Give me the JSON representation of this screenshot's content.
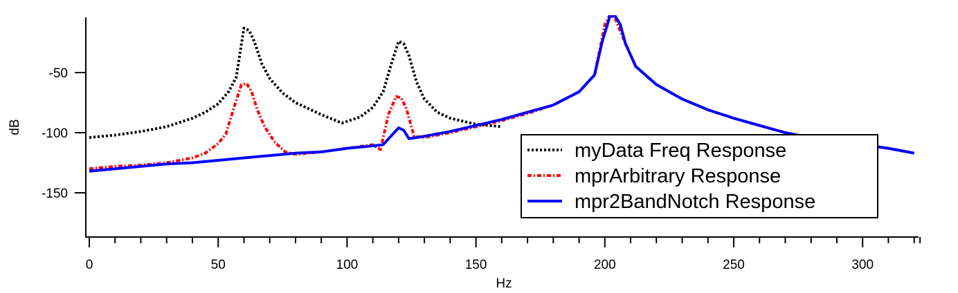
{
  "chart_data": {
    "type": "line",
    "title": "",
    "xlabel": "Hz",
    "ylabel": "dB",
    "xlim": [
      0,
      322
    ],
    "ylim": [
      -186,
      -4
    ],
    "x_ticks_major": [
      0,
      50,
      100,
      150,
      200,
      250,
      300
    ],
    "x_tick_labels": [
      "0",
      "50",
      "100",
      "150",
      "200",
      "250",
      "300"
    ],
    "x_minor_step": 10,
    "y_ticks_major": [
      -50,
      -100,
      -150
    ],
    "y_tick_labels": [
      "-50",
      "-100",
      "-150"
    ],
    "grid": false,
    "legend_position": "bottom-right",
    "series": [
      {
        "name": "myData Freq Response",
        "color": "#000000",
        "style": "dotted",
        "x": [
          0,
          10,
          20,
          30,
          40,
          45,
          50,
          54,
          57,
          60,
          62,
          64,
          67,
          70,
          75,
          80,
          90,
          98,
          105,
          110,
          114,
          117,
          120,
          122,
          124,
          127,
          130,
          135,
          140,
          150,
          160
        ],
        "y": [
          -104,
          -102,
          -99,
          -95,
          -88,
          -83,
          -76,
          -66,
          -54,
          -13,
          -15,
          -24,
          -43,
          -55,
          -67,
          -75,
          -85,
          -92,
          -87,
          -79,
          -66,
          -44,
          -24,
          -26,
          -36,
          -58,
          -72,
          -83,
          -88,
          -93,
          -95
        ]
      },
      {
        "name": "mprArbitrary Response",
        "color": "#ff0000",
        "style": "dash-dot",
        "x": [
          0,
          10,
          20,
          30,
          40,
          45,
          50,
          53,
          56,
          59,
          61,
          63,
          65,
          68,
          72,
          76,
          80,
          90,
          100,
          110,
          113,
          116,
          119,
          121,
          123,
          126,
          130,
          140,
          150,
          160,
          170,
          180,
          190,
          196,
          200,
          202,
          204,
          208,
          212,
          220,
          230,
          240,
          250,
          260,
          270,
          280,
          290,
          300,
          310,
          320
        ],
        "y": [
          -130,
          -128,
          -127,
          -125,
          -121,
          -117,
          -109,
          -101,
          -80,
          -60,
          -59,
          -66,
          -80,
          -95,
          -108,
          -116,
          -118,
          -116,
          -113,
          -110,
          -114,
          -85,
          -70,
          -71,
          -80,
          -103,
          -104,
          -100,
          -95,
          -90,
          -84,
          -77,
          -66,
          -52,
          -10,
          -2,
          -5,
          -26,
          -45,
          -60,
          -72,
          -81,
          -88,
          -94,
          -100,
          -104,
          -107,
          -110,
          -113,
          -117
        ]
      },
      {
        "name": "mpr2BandNotch Response",
        "color": "#0000ff",
        "style": "solid",
        "x": [
          0,
          10,
          20,
          30,
          40,
          50,
          60,
          70,
          80,
          90,
          100,
          110,
          114,
          117,
          120,
          122,
          124,
          127,
          130,
          140,
          150,
          160,
          170,
          180,
          190,
          196,
          199,
          202,
          204,
          206,
          208,
          212,
          220,
          230,
          240,
          250,
          260,
          270,
          280,
          290,
          300,
          310,
          320
        ],
        "y": [
          -132,
          -130,
          -128,
          -126,
          -125,
          -123,
          -121,
          -119,
          -117,
          -116,
          -113,
          -111,
          -110,
          -103,
          -96,
          -98,
          -105,
          -104,
          -103,
          -99,
          -94,
          -89,
          -83,
          -77,
          -66,
          -52,
          -24,
          -3,
          -3,
          -10,
          -26,
          -45,
          -60,
          -72,
          -81,
          -88,
          -94,
          -100,
          -104,
          -107,
          -110,
          -113,
          -117
        ]
      }
    ]
  }
}
